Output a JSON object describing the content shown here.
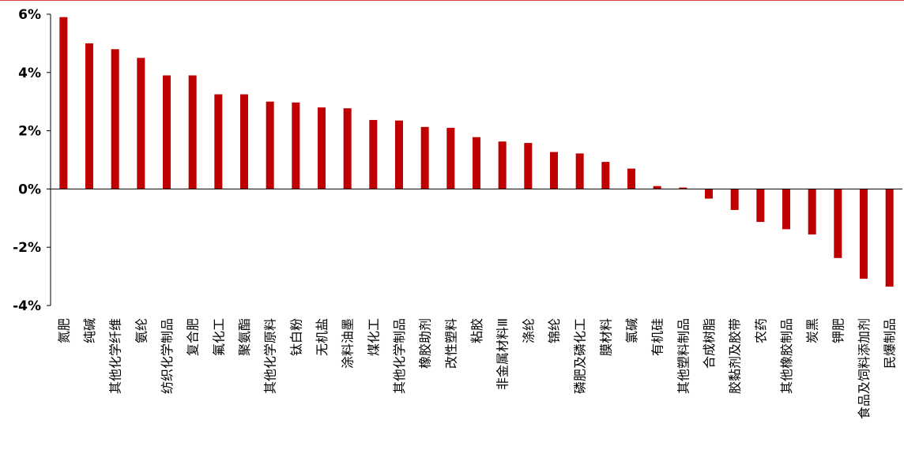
{
  "chart_data": {
    "type": "bar",
    "title": "",
    "xlabel": "",
    "ylabel": "",
    "ylim": [
      -4,
      6
    ],
    "yticks": [
      6,
      4,
      2,
      0,
      -2,
      -4
    ],
    "ytick_labels": [
      "6%",
      "4%",
      "2%",
      "0%",
      "-2%",
      "-4%"
    ],
    "grid": false,
    "bar_color": "#c00000",
    "categories": [
      "氮肥",
      "纯碱",
      "其他化学纤维",
      "氨纶",
      "纺织化学制品",
      "复合肥",
      "氟化工",
      "聚氨酯",
      "其他化学原料",
      "钛白粉",
      "无机盐",
      "涂料油墨",
      "煤化工",
      "其他化学制品",
      "橡胶助剂",
      "改性塑料",
      "粘胶",
      "非金属材料Ⅲ",
      "涤纶",
      "锦纶",
      "磷肥及磷化工",
      "膜材料",
      "氯碱",
      "有机硅",
      "其他塑料制品",
      "合成树脂",
      "胶黏剂及胶带",
      "农药",
      "其他橡胶制品",
      "炭黑",
      "钾肥",
      "食品及饲料添加剂",
      "民爆制品"
    ],
    "values": [
      5.9,
      5.0,
      4.8,
      4.5,
      3.9,
      3.9,
      3.25,
      3.25,
      3.0,
      2.97,
      2.8,
      2.77,
      2.37,
      2.35,
      2.13,
      2.1,
      1.78,
      1.63,
      1.58,
      1.27,
      1.22,
      0.93,
      0.7,
      0.1,
      0.05,
      -0.33,
      -0.72,
      -1.13,
      -1.38,
      -1.56,
      -2.37,
      -3.08,
      -3.35
    ]
  }
}
